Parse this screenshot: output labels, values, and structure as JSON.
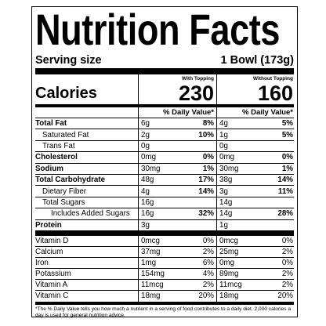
{
  "header": {
    "title": "Nutrition Facts",
    "serving_label": "Serving size",
    "serving_value": "1 Bowl (173g)"
  },
  "columns": [
    "With Topping",
    "Without Topping"
  ],
  "calories": {
    "label": "Calories",
    "values": [
      "230",
      "160"
    ]
  },
  "dv_header": [
    "% Daily Value*",
    "% Daily Value*"
  ],
  "nutrients": [
    {
      "name": "Total Fat",
      "with": {
        "amount": "6g",
        "dv": "8%"
      },
      "without": {
        "amount": "4g",
        "dv": "5%"
      }
    },
    {
      "name": "Saturated Fat",
      "with": {
        "amount": "2g",
        "dv": "10%"
      },
      "without": {
        "amount": "1g",
        "dv": "5%"
      }
    },
    {
      "name": "Trans Fat",
      "with": {
        "amount": "0g"
      },
      "without": {
        "amount": "0g"
      }
    },
    {
      "name": "Cholesterol",
      "with": {
        "amount": "0mg",
        "dv": "0%"
      },
      "without": {
        "amount": "0mg",
        "dv": "0%"
      }
    },
    {
      "name": "Sodium",
      "with": {
        "amount": "30mg",
        "dv": "1%"
      },
      "without": {
        "amount": "30mg",
        "dv": "1%"
      }
    },
    {
      "name": "Total Carbohydrate",
      "with": {
        "amount": "48g",
        "dv": "17%"
      },
      "without": {
        "amount": "38g",
        "dv": "14%"
      }
    },
    {
      "name": "Dietary Fiber",
      "with": {
        "amount": "4g",
        "dv": "14%"
      },
      "without": {
        "amount": "3g",
        "dv": "11%"
      }
    },
    {
      "name": "Total Sugars",
      "with": {
        "amount": "16g"
      },
      "without": {
        "amount": "14g"
      }
    },
    {
      "name": "Includes Added Sugars",
      "with": {
        "amount": "16g",
        "dv": "32%"
      },
      "without": {
        "amount": "14g",
        "dv": "28%"
      }
    },
    {
      "name": "Protein",
      "with": {
        "amount": "3g"
      },
      "without": {
        "amount": "1g"
      }
    }
  ],
  "vitamins": [
    {
      "name": "Vitamin D",
      "with": {
        "amount": "0mcg",
        "dv": "0%"
      },
      "without": {
        "amount": "0mcg",
        "dv": "0%"
      }
    },
    {
      "name": "Calcium",
      "with": {
        "amount": "37mg",
        "dv": "2%"
      },
      "without": {
        "amount": "25mg",
        "dv": "2%"
      }
    },
    {
      "name": "Iron",
      "with": {
        "amount": "1mg",
        "dv": "6%"
      },
      "without": {
        "amount": "0mg",
        "dv": "0%"
      }
    },
    {
      "name": "Potassium",
      "with": {
        "amount": "154mg",
        "dv": "4%"
      },
      "without": {
        "amount": "89mg",
        "dv": "2%"
      }
    },
    {
      "name": "Vitamin A",
      "with": {
        "amount": "11mcg",
        "dv": "2%"
      },
      "without": {
        "amount": "11mcg",
        "dv": "2%"
      }
    },
    {
      "name": "Vitamin C",
      "with": {
        "amount": "18mg",
        "dv": "20%"
      },
      "without": {
        "amount": "18mg",
        "dv": "20%"
      }
    }
  ],
  "footnote": "*The % Daily Value tells you how much a nutrient in a serving of food contributes to a daily diet. 2,000 calories a day is used for general nutrition advice."
}
